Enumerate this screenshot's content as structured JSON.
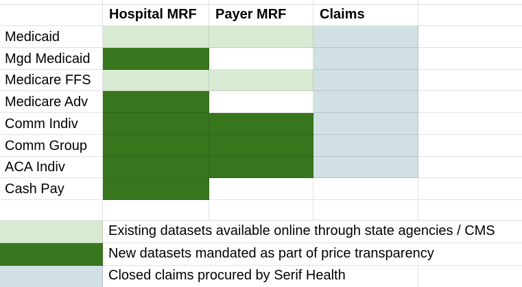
{
  "palette": {
    "existing": "#d9ead3",
    "new": "#38761d",
    "claims": "#d0e0e3",
    "gridline": "rgba(0,0,0,0.118)"
  },
  "header": {
    "columns": [
      "",
      "Hospital MRF",
      "Payer MRF",
      "Claims",
      ""
    ]
  },
  "matrix": {
    "rows": [
      {
        "label": "Medicaid",
        "cells": [
          "existing",
          "existing",
          "claims"
        ]
      },
      {
        "label": "Mgd Medicaid",
        "cells": [
          "new",
          "none",
          "claims"
        ]
      },
      {
        "label": "Medicare FFS",
        "cells": [
          "existing",
          "existing",
          "claims"
        ]
      },
      {
        "label": "Medicare Adv",
        "cells": [
          "new",
          "none",
          "claims"
        ]
      },
      {
        "label": "Comm Indiv",
        "cells": [
          "new",
          "new",
          "claims"
        ]
      },
      {
        "label": "Comm Group",
        "cells": [
          "new",
          "new",
          "claims"
        ]
      },
      {
        "label": "ACA Indiv",
        "cells": [
          "new",
          "new",
          "claims"
        ]
      },
      {
        "label": "Cash Pay",
        "cells": [
          "new",
          "none",
          "none"
        ]
      }
    ]
  },
  "legend": {
    "items": [
      {
        "key": "existing",
        "label": "Existing datasets available online through state agencies / CMS"
      },
      {
        "key": "new",
        "label": "New datasets mandated as part of price transparency"
      },
      {
        "key": "claims",
        "label": "Closed claims procured by Serif Health"
      }
    ]
  }
}
